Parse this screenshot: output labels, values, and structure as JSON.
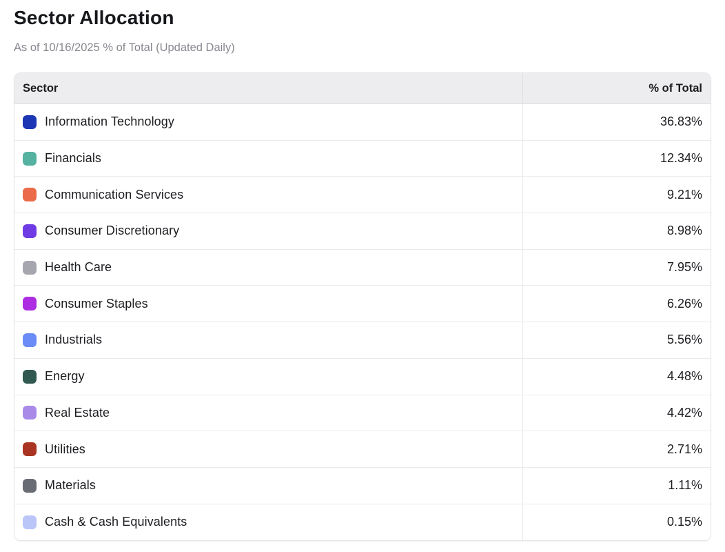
{
  "page": {
    "title": "Sector Allocation",
    "subtitle": "As of 10/16/2025 % of Total (Updated Daily)"
  },
  "table": {
    "columns": [
      "Sector",
      "% of Total"
    ],
    "rows": [
      {
        "sector": "Information Technology",
        "value": "36.83%",
        "color": "#1b35b4",
        "icon": "sector-color-swatch-icon"
      },
      {
        "sector": "Financials",
        "value": "12.34%",
        "color": "#55b1a0",
        "icon": "sector-color-swatch-icon"
      },
      {
        "sector": "Communication Services",
        "value": "9.21%",
        "color": "#eb6a4a",
        "icon": "sector-color-swatch-icon"
      },
      {
        "sector": "Consumer Discretionary",
        "value": "8.98%",
        "color": "#6e3be4",
        "icon": "sector-color-swatch-icon"
      },
      {
        "sector": "Health Care",
        "value": "7.95%",
        "color": "#a6a7ae",
        "icon": "sector-color-swatch-icon"
      },
      {
        "sector": "Consumer Staples",
        "value": "6.26%",
        "color": "#ad2ee2",
        "icon": "sector-color-swatch-icon"
      },
      {
        "sector": "Industrials",
        "value": "5.56%",
        "color": "#6b8bf7",
        "icon": "sector-color-swatch-icon"
      },
      {
        "sector": "Energy",
        "value": "4.48%",
        "color": "#31594f",
        "icon": "sector-color-swatch-icon"
      },
      {
        "sector": "Real Estate",
        "value": "4.42%",
        "color": "#a98ae9",
        "icon": "sector-color-swatch-icon"
      },
      {
        "sector": "Utilities",
        "value": "2.71%",
        "color": "#a93421",
        "icon": "sector-color-swatch-icon"
      },
      {
        "sector": "Materials",
        "value": "1.11%",
        "color": "#696c75",
        "icon": "sector-color-swatch-icon"
      },
      {
        "sector": "Cash & Cash Equivalents",
        "value": "0.15%",
        "color": "#bac5f8",
        "icon": "sector-color-swatch-icon"
      }
    ]
  },
  "chart_data": {
    "type": "table",
    "title": "Sector Allocation",
    "subtitle": "As of 10/16/2025 % of Total (Updated Daily)",
    "columns": [
      "Sector",
      "% of Total"
    ],
    "categories": [
      "Information Technology",
      "Financials",
      "Communication Services",
      "Consumer Discretionary",
      "Health Care",
      "Consumer Staples",
      "Industrials",
      "Energy",
      "Real Estate",
      "Utilities",
      "Materials",
      "Cash & Cash Equivalents"
    ],
    "values": [
      36.83,
      12.34,
      9.21,
      8.98,
      7.95,
      6.26,
      5.56,
      4.48,
      4.42,
      2.71,
      1.11,
      0.15
    ],
    "unit": "%"
  }
}
